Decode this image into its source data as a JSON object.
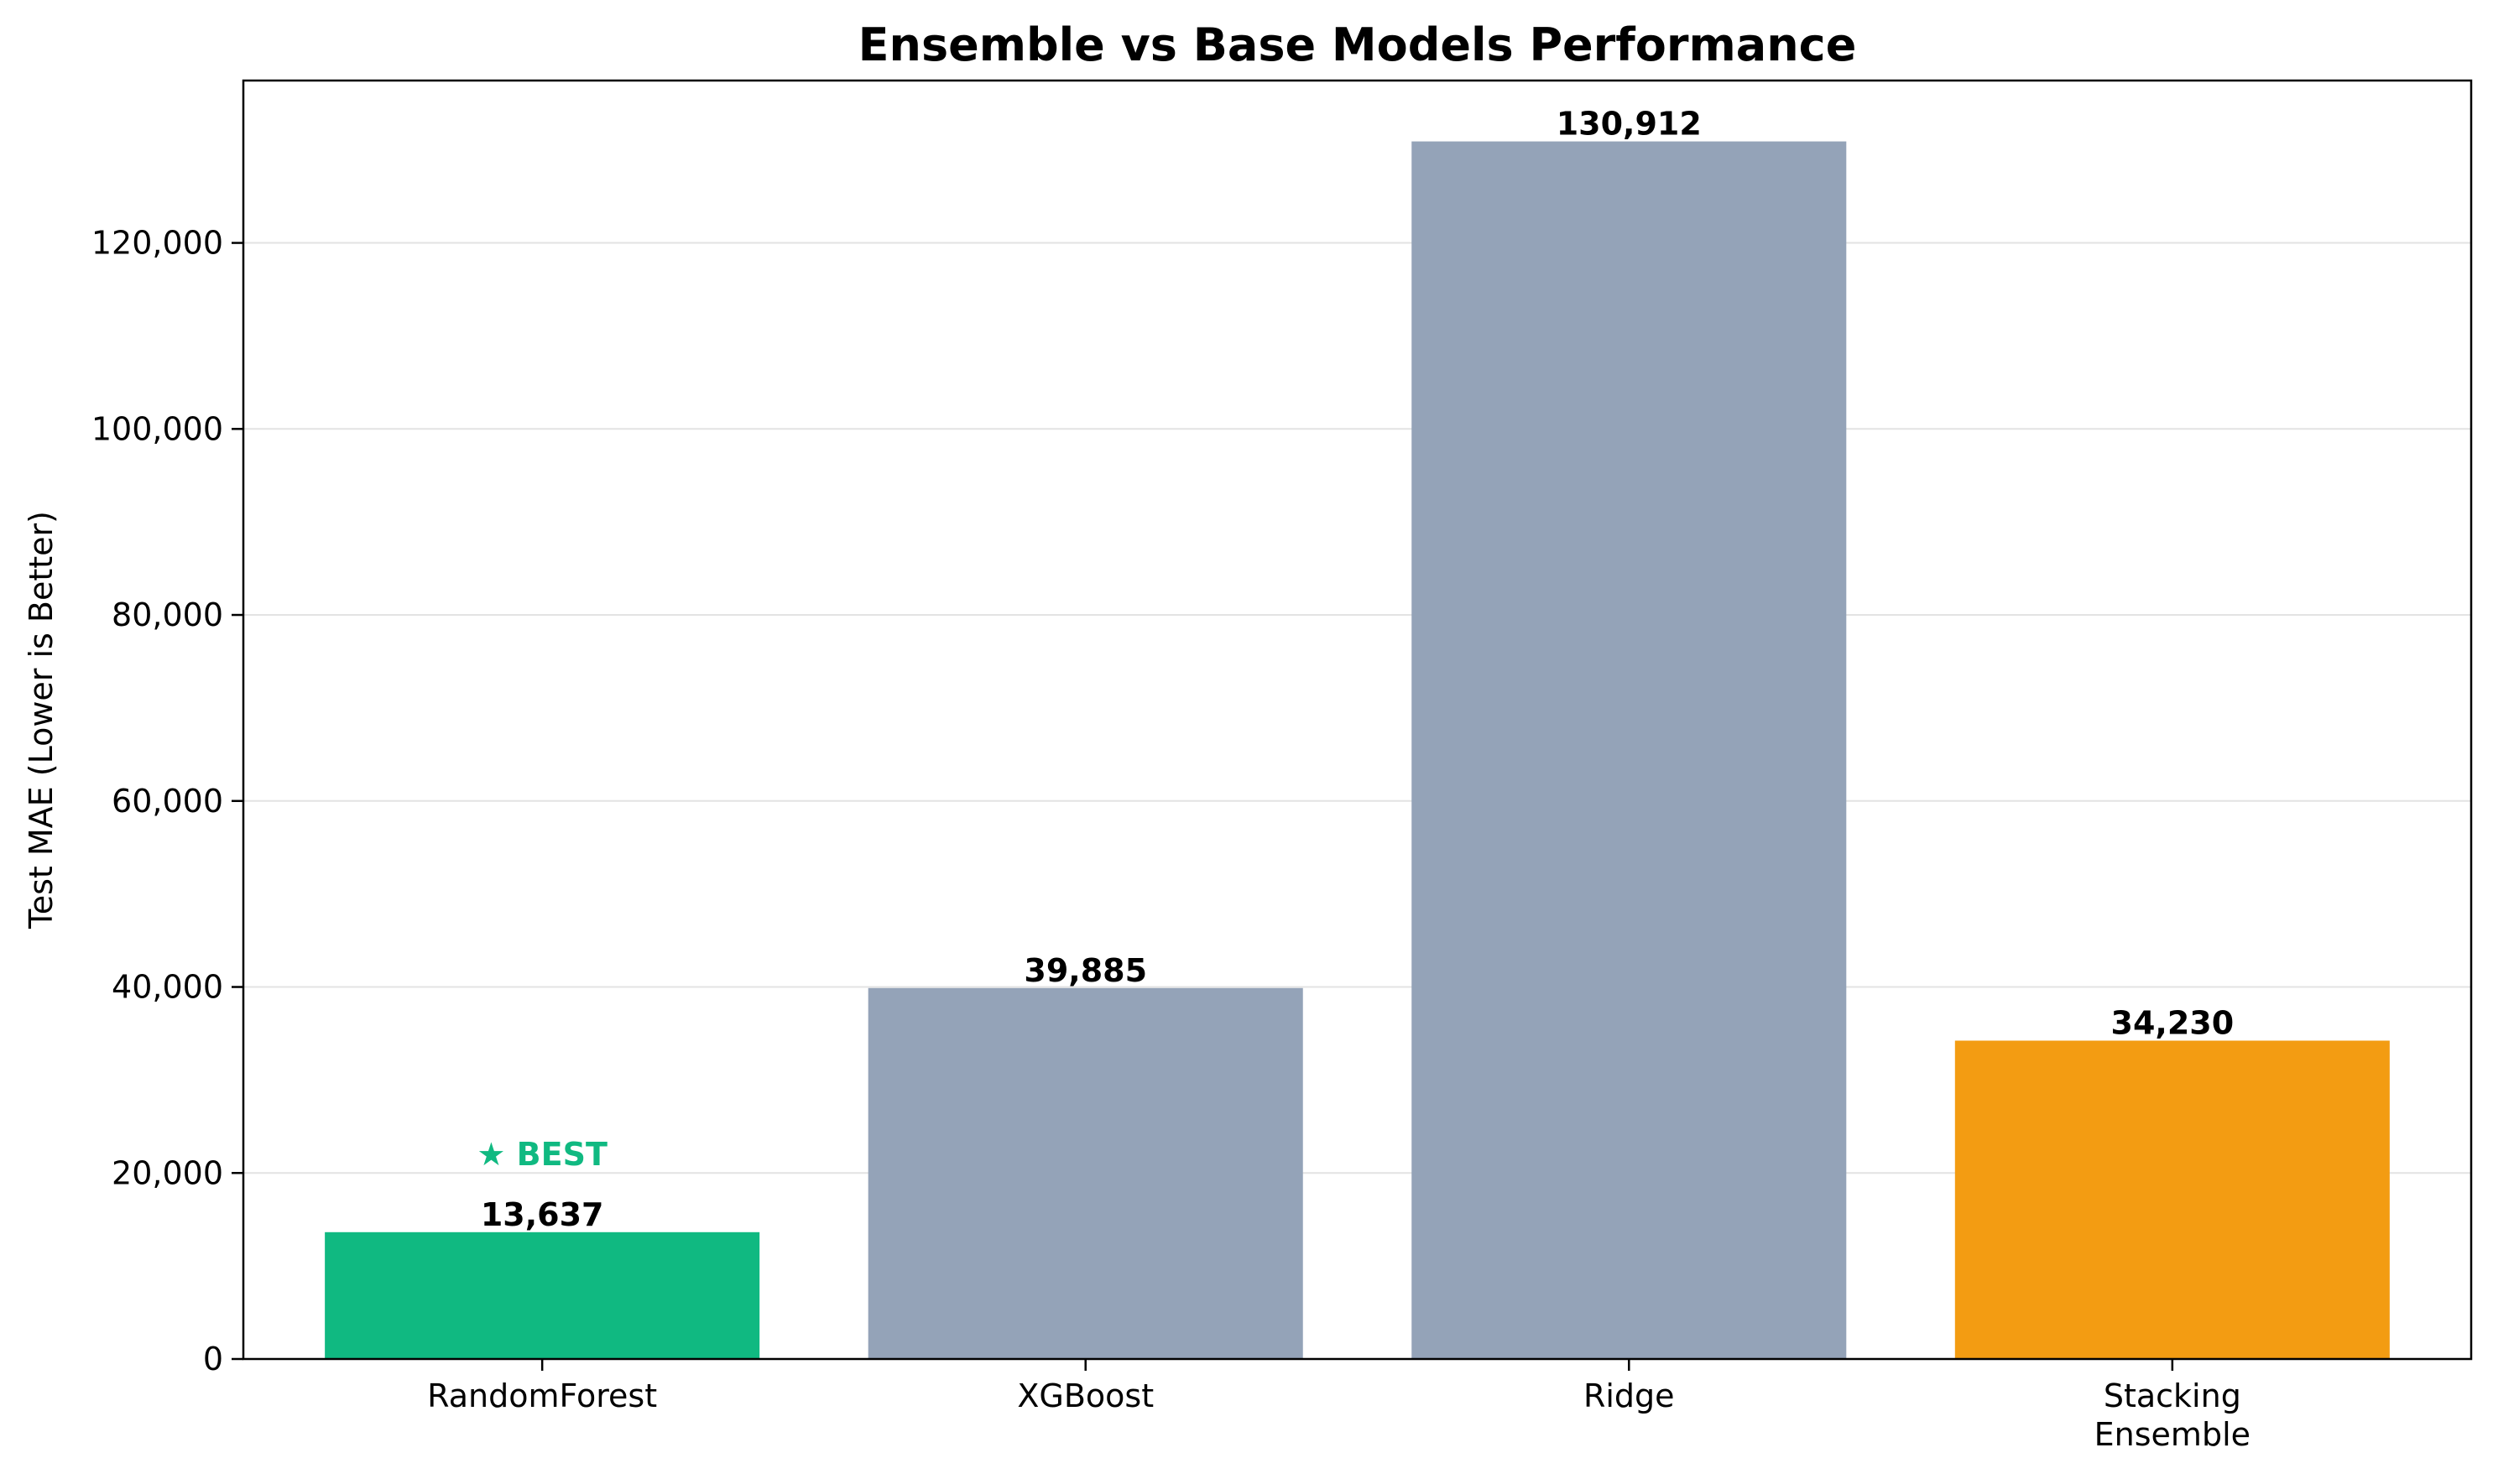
{
  "chart_data": {
    "type": "bar",
    "title": "Ensemble vs Base Models Performance",
    "xlabel": "",
    "ylabel": "Test MAE (Lower is Better)",
    "ylim": [
      0,
      137458
    ],
    "yticks": [
      0,
      20000,
      40000,
      60000,
      80000,
      100000,
      120000
    ],
    "ytick_labels": [
      "0",
      "20,000",
      "40,000",
      "60,000",
      "80,000",
      "100,000",
      "120,000"
    ],
    "grid": "y",
    "categories": [
      [
        "RandomForest"
      ],
      [
        "XGBoost"
      ],
      [
        "Ridge"
      ],
      [
        "Stacking",
        "Ensemble"
      ]
    ],
    "values": [
      13637,
      39885,
      130912,
      34230
    ],
    "value_labels": [
      "13,637",
      "39,885",
      "130,912",
      "34,230"
    ],
    "colors": [
      "#10b981",
      "#94a3b8",
      "#94a3b8",
      "#f39c12"
    ],
    "annotation": {
      "text": "★ BEST",
      "category_index": 0,
      "color": "#10b981"
    }
  }
}
